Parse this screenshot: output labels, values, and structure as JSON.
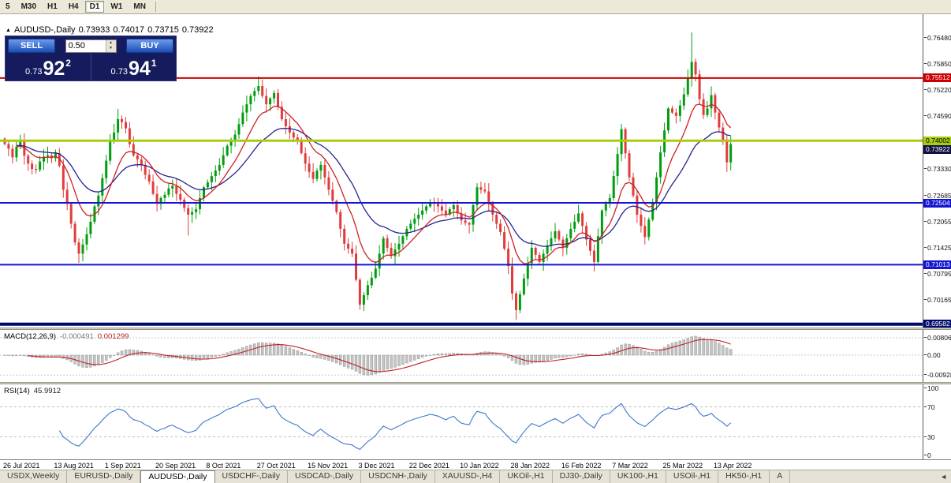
{
  "toolbar": {
    "timeframes": [
      "5",
      "M30",
      "H1",
      "H4",
      "D1",
      "W1",
      "MN"
    ],
    "active": "D1"
  },
  "chart_header": {
    "collapse_icon": "▲",
    "symbol_title": "AUDUSD-,Daily",
    "ohlc": {
      "open": "0.73933",
      "high": "0.74017",
      "low": "0.73715",
      "close": "0.73922"
    }
  },
  "trade_panel": {
    "sell_label": "SELL",
    "buy_label": "BUY",
    "volume": "0.50",
    "sell_price": {
      "prefix": "0.73",
      "big": "92",
      "sup": "2"
    },
    "buy_price": {
      "prefix": "0.73",
      "big": "94",
      "sup": "1"
    }
  },
  "indicators": {
    "macd": {
      "name": "MACD(12,26,9)",
      "value_main": "-0.000491",
      "value_signal": "0.001299",
      "axis": [
        "0.00806",
        "0.00",
        "-0.00928"
      ]
    },
    "rsi": {
      "name": "RSI(14)",
      "value": "45.9912",
      "axis": [
        "100",
        "70",
        "30",
        "0"
      ],
      "levels": [
        70,
        30
      ]
    }
  },
  "chart_data": {
    "type": "candlestick",
    "symbol": "AUDUSD",
    "timeframe": "Daily",
    "ylim": [
      0.695,
      0.7705
    ],
    "price_ticks": [
      "0.76480",
      "0.75850",
      "0.75220",
      "0.74590",
      "0.73330",
      "0.72685",
      "0.72055",
      "0.71425",
      "0.70795",
      "0.70165"
    ],
    "hlines": [
      {
        "price": 0.75512,
        "label": "0.75512",
        "color": "#CC0000",
        "width": 2,
        "badge_fg": "#FFFFFF"
      },
      {
        "price": 0.74002,
        "label": "0.74002",
        "color": "#A8CC12",
        "width": 3,
        "badge_fg": "#000000"
      },
      {
        "price": 0.72504,
        "label": "0.72504",
        "color": "#1414D2",
        "width": 2,
        "badge_fg": "#FFFFFF"
      },
      {
        "price": 0.71013,
        "label": "0.71013",
        "color": "#1414D2",
        "width": 2,
        "badge_fg": "#FFFFFF"
      },
      {
        "price": 0.69582,
        "label": "0.69582",
        "color": "#000A6E",
        "width": 4,
        "badge_fg": "#FFFFFF"
      }
    ],
    "bid_badge": {
      "label": "0.73922",
      "bg": "#111142",
      "fg": "#FFFFFF"
    },
    "first_open": 0.7405,
    "default_wick": 0.0011,
    "closes": [
      0.7392,
      0.7381,
      0.736,
      0.7386,
      0.7398,
      0.7364,
      0.7345,
      0.7332,
      0.733,
      0.735,
      0.7362,
      0.7365,
      0.7358,
      0.737,
      0.734,
      0.7282,
      0.7248,
      0.72,
      0.7155,
      0.7128,
      0.715,
      0.7175,
      0.7205,
      0.7242,
      0.7268,
      0.731,
      0.7352,
      0.7398,
      0.742,
      0.7452,
      0.7445,
      0.743,
      0.7392,
      0.7365,
      0.7355,
      0.7342,
      0.7318,
      0.7302,
      0.7272,
      0.7248,
      0.7262,
      0.727,
      0.7285,
      0.7292,
      0.7272,
      0.7258,
      0.7238,
      0.7222,
      0.7228,
      0.7235,
      0.7262,
      0.7288,
      0.73,
      0.7315,
      0.7328,
      0.7342,
      0.7365,
      0.7388,
      0.74,
      0.7415,
      0.744,
      0.7468,
      0.7488,
      0.7508,
      0.752,
      0.7532,
      0.7508,
      0.7488,
      0.7502,
      0.7515,
      0.7482,
      0.7452,
      0.7435,
      0.742,
      0.7408,
      0.7398,
      0.737,
      0.7345,
      0.7325,
      0.7308,
      0.7328,
      0.7342,
      0.7312,
      0.7282,
      0.7255,
      0.7228,
      0.7188,
      0.7152,
      0.714,
      0.7128,
      0.7065,
      0.7005,
      0.7028,
      0.7052,
      0.707,
      0.7092,
      0.7128,
      0.7165,
      0.7142,
      0.7122,
      0.7138,
      0.7152,
      0.717,
      0.7188,
      0.72,
      0.7212,
      0.7222,
      0.7232,
      0.7242,
      0.7252,
      0.7248,
      0.7242,
      0.7232,
      0.7222,
      0.7235,
      0.7245,
      0.7225,
      0.7208,
      0.7202,
      0.7198,
      0.7245,
      0.7288,
      0.7282,
      0.7278,
      0.725,
      0.7222,
      0.72,
      0.718,
      0.714,
      0.7098,
      0.7032,
      0.6992,
      0.703,
      0.7068,
      0.7105,
      0.7142,
      0.7125,
      0.7108,
      0.7128,
      0.7148,
      0.7165,
      0.7182,
      0.7162,
      0.7142,
      0.7165,
      0.7188,
      0.7205,
      0.7225,
      0.7195,
      0.7162,
      0.7135,
      0.7108,
      0.717,
      0.7232,
      0.7248,
      0.7262,
      0.7315,
      0.7368,
      0.7428,
      0.737,
      0.7312,
      0.7268,
      0.7222,
      0.7195,
      0.7168,
      0.721,
      0.7252,
      0.7312,
      0.7372,
      0.7425,
      0.7478,
      0.7468,
      0.746,
      0.7485,
      0.7512,
      0.7552,
      0.759,
      0.756,
      0.75,
      0.7462,
      0.7478,
      0.751,
      0.7468,
      0.7432,
      0.7398,
      0.7348,
      0.7392
    ],
    "wick_overrides": {
      "19": {
        "low": 0.7106
      },
      "29": {
        "high": 0.7477
      },
      "47": {
        "low": 0.7172
      },
      "65": {
        "high": 0.7555
      },
      "91": {
        "low": 0.6993
      },
      "131": {
        "low": 0.6968
      },
      "151": {
        "low": 0.7085
      },
      "158": {
        "high": 0.744
      },
      "164": {
        "low": 0.715
      },
      "176": {
        "high": 0.7661
      },
      "185": {
        "low": 0.7325
      }
    },
    "colors": {
      "up": "#009E0F",
      "down": "#E03C3C",
      "ma_fast": "#CC2222",
      "ma_slow": "#24248F",
      "macd_hist": "#C4C4C4",
      "macd_hist_stroke": "#8A8A8A",
      "macd_signal": "#C22020",
      "rsi_line": "#3F76CC"
    },
    "ma_periods": {
      "fast": 10,
      "slow": 24
    },
    "x_labels": [
      "26 Jul 2021",
      "13 Aug 2021",
      "1 Sep 2021",
      "20 Sep 2021",
      "8 Oct 2021",
      "27 Oct 2021",
      "15 Nov 2021",
      "3 Dec 2021",
      "22 Dec 2021",
      "10 Jan 2022",
      "28 Jan 2022",
      "16 Feb 2022",
      "7 Mar 2022",
      "25 Mar 2022",
      "13 Apr 2022"
    ],
    "label_every": 13
  },
  "tabs": {
    "items": [
      "USDX,Weekly",
      "EURUSD-,Daily",
      "AUDUSD-,Daily",
      "USDCHF-,Daily",
      "USDCAD-,Daily",
      "USDCNH-,Daily",
      "XAUUSD-,H4",
      "UKOil-,H1",
      "DJ30-,Daily",
      "UK100-,H1",
      "USOil-,H1",
      "HK50-,H1",
      "A"
    ],
    "active_index": 2,
    "scroll_left_icon": "◄"
  }
}
